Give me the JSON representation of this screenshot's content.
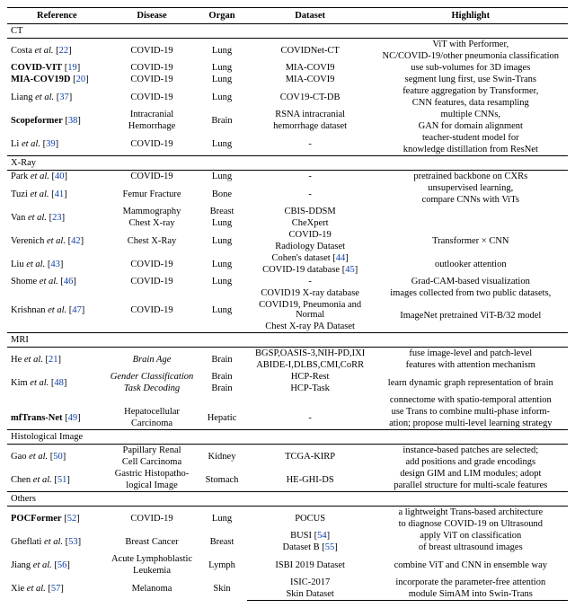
{
  "headers": {
    "reference": "Reference",
    "disease": "Disease",
    "organ": "Organ",
    "dataset": "Dataset",
    "highlight": "Highlight"
  },
  "sections": {
    "ct": "CT",
    "xray": "X-Ray",
    "mri": "MRI",
    "hist": "Histological Image",
    "others": "Others"
  },
  "ct": {
    "r1": {
      "ref_pre": "Costa ",
      "ref_ital": "et al.",
      "cite": "22",
      "disease": "COVID-19",
      "organ": "Lung",
      "dataset": "COVIDNet-CT",
      "hl1": "ViT with Performer,",
      "hl2": "NC/COVID-19/other pneumonia classification"
    },
    "r2": {
      "ref": "COVID-VIT",
      "cite": "19",
      "disease": "COVID-19",
      "organ": "Lung",
      "dataset": "MIA-COVI9",
      "hl": "use sub-volumes for 3D images"
    },
    "r3": {
      "ref": "MIA-COV19D",
      "cite": "20",
      "disease": "COVID-19",
      "organ": "Lung",
      "dataset": "MIA-COVI9",
      "hl": "segment lung first, use Swin-Trans"
    },
    "r4": {
      "ref_pre": "Liang ",
      "ref_ital": "et al.",
      "cite": "37",
      "disease": "COVID-19",
      "organ": "Lung",
      "dataset": "COV19-CT-DB",
      "hl1": "feature aggregation by Transformer,",
      "hl2": "CNN features, data resampling"
    },
    "r5": {
      "ref": "Scopeformer",
      "cite": "38",
      "disease1": "Intracranial",
      "disease2": "Hemorrhage",
      "organ": "Brain",
      "dataset1": "RSNA intracranial",
      "dataset2": "hemorrhage dataset",
      "hl1": "multiple CNNs,",
      "hl2": "GAN for domain alignment"
    },
    "r6": {
      "ref_pre": "Li ",
      "ref_ital": "et al.",
      "cite": "39",
      "disease": "COVID-19",
      "organ": "Lung",
      "dataset": "-",
      "hl1": "teacher-student model for",
      "hl2": "knowledge distillation from ResNet"
    }
  },
  "xray": {
    "r1": {
      "ref_pre": "Park ",
      "ref_ital": "et al.",
      "cite": "40",
      "disease": "COVID-19",
      "organ": "Lung",
      "dataset": "-",
      "hl": "pretrained backbone on CXRs"
    },
    "r2": {
      "ref_pre": "Tuzi ",
      "ref_ital": "et al.",
      "cite": "41",
      "disease": "Femur Fracture",
      "organ": "Bone",
      "dataset": "-",
      "hl1": "unsupervised learning,",
      "hl2": "compare CNNs with ViTs"
    },
    "r3": {
      "ref_pre": "Van ",
      "ref_ital": "et al.",
      "cite": "23",
      "disease1": "Mammography",
      "disease2": "Chest X-ray",
      "organ1": "Breast",
      "organ2": "Lung",
      "dataset1": "CBIS-DDSM",
      "dataset2": "CheXpert"
    },
    "r4": {
      "ref_pre": "Verenich ",
      "ref_ital": "et al.",
      "cite": "42",
      "disease": "Chest X-Ray",
      "organ": "Lung",
      "dataset1": "COVID-19",
      "dataset2": "Radiology Dataset",
      "hl": "Transformer × CNN"
    },
    "r5": {
      "ref_pre": "Liu ",
      "ref_ital": "et al.",
      "cite": "43",
      "disease": "COVID-19",
      "organ": "Lung",
      "dataset1": "Cohen's dataset",
      "cite1": "44",
      "dataset2": "COVID-19 database",
      "cite2": "45",
      "hl": "outlooker attention"
    },
    "r6": {
      "ref_pre": "Shome ",
      "ref_ital": "et al.",
      "cite": "46",
      "disease": "COVID-19",
      "organ": "Lung",
      "dataset": "-",
      "hl": "Grad-CAM-based visualization"
    },
    "r7": {
      "ref_pre": "Krishnan ",
      "ref_ital": "et al.",
      "cite": "47",
      "disease": "COVID-19",
      "organ": "Lung",
      "dataset1": "COVID19 X-ray database",
      "dataset2": "COVID19, Pneumonia and Normal",
      "dataset3": "Chest X-ray PA Dataset",
      "hl1": "images collected from two public datasets,",
      "hl2": "ImageNet pretrained ViT-B/32 model"
    }
  },
  "mri": {
    "r1": {
      "ref_pre": "He ",
      "ref_ital": "et al.",
      "cite": "21",
      "disease": "Brain Age",
      "organ": "Brain",
      "dataset1": "BGSP,OASIS-3,NIH-PD,IXI",
      "dataset2": "ABIDE-I,DLBS,CMI,CoRR",
      "hl1": "fuse image-level and patch-level",
      "hl2": "features with attention mechanism"
    },
    "r2": {
      "ref_pre": "Kim ",
      "ref_ital": "et al.",
      "cite": "48",
      "disease": "Gender Classification",
      "organ": "Brain",
      "dataset": "HCP-Rest",
      "hl1": "learn dynamic graph representation of brain",
      "hl2": "connectome with spatio-temporal attention"
    },
    "r2b": {
      "disease": "Task Decoding",
      "organ": "Brain",
      "dataset": "HCP-Task"
    },
    "r3": {
      "ref": "mfTrans-Net",
      "cite": "49",
      "disease1": "Hepatocellular",
      "disease2": "Carcinoma",
      "organ": "Hepatic",
      "dataset": "-",
      "hl1": "use Trans to combine multi-phase inform-",
      "hl2": "ation; propose multi-level learning strategy"
    }
  },
  "hist": {
    "r1": {
      "ref_pre": "Gao ",
      "ref_ital": "et al.",
      "cite": "50",
      "disease1": "Papillary Renal",
      "disease2": "Cell Carcinoma",
      "organ": "Kidney",
      "dataset": "TCGA-KIRP",
      "hl1": "instance-based patches are selected;",
      "hl2": "add positions and grade encodings"
    },
    "r2": {
      "ref_pre": "Chen ",
      "ref_ital": "et al.",
      "cite": "51",
      "disease1": "Gastric Histopatho-",
      "disease2": "logical Image",
      "organ": "Stomach",
      "dataset": "HE-GHI-DS",
      "hl1": "design GIM and LIM modules; adopt",
      "hl2": "parallel structure for multi-scale features"
    }
  },
  "others": {
    "r1": {
      "ref": "POCFormer",
      "cite": "52",
      "disease": "COVID-19",
      "organ": "Lung",
      "dataset": "POCUS",
      "hl1": "a lightweight Trans-based architecture",
      "hl2": "to diagnose COVID-19 on Ultrasound"
    },
    "r2": {
      "ref_pre": "Gheflati ",
      "ref_ital": "et al.",
      "cite": "53",
      "disease": "Breast Cancer",
      "organ": "Breast",
      "dataset1": "BUSI",
      "cite1": "54",
      "dataset2": "Dataset B",
      "cite2": "55",
      "hl1": "apply ViT on classification",
      "hl2": "of breast ultrasound images"
    },
    "r3": {
      "ref_pre": "Jiang ",
      "ref_ital": "et al.",
      "cite": "56",
      "disease1": "Acute Lymphoblastic",
      "disease2": "Leukemia",
      "organ": "Lymph",
      "dataset": "ISBI 2019 Dataset",
      "hl": "combine ViT and CNN in ensemble way"
    },
    "r4": {
      "ref_pre": "Xie ",
      "ref_ital": "et al.",
      "cite": "57",
      "disease": "Melanoma",
      "organ": "Skin",
      "dataset1": "ISIC-2017",
      "dataset2": "Skin Dataset",
      "hl1": "incorporate the parameter-free attention",
      "hl2": "module SimAM into Swin-Trans"
    }
  }
}
